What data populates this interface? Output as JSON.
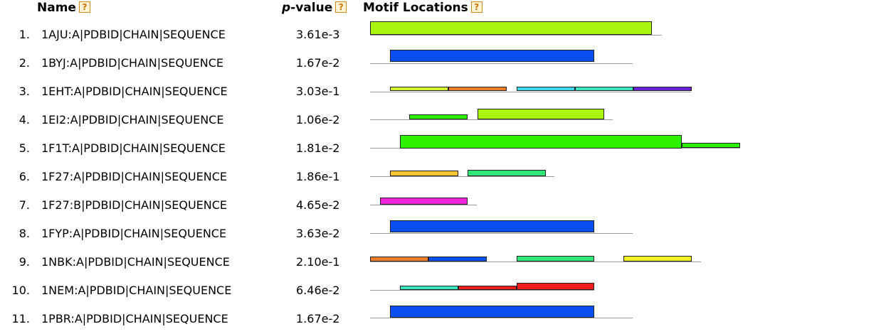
{
  "headers": {
    "name": "Name",
    "pvalue_prefix": "p",
    "pvalue_suffix": "-value",
    "motif_locations": "Motif Locations",
    "help_glyph": "?"
  },
  "colors": {
    "lime": "#aaf50f",
    "green": "#2df200",
    "blue": "#0a4ff0",
    "yellow_green": "#d6f032",
    "orange": "#f07d2a",
    "cyan": "#3ed8f0",
    "teal": "#38e8bc",
    "purple": "#6a22d8",
    "gold": "#f9c532",
    "spring": "#32e678",
    "magenta": "#f023dc",
    "bright_yellow": "#f2f22a",
    "red": "#f21d1d",
    "sequence_line": "#9a9a9a",
    "help_border": "#d98a1a"
  },
  "rows": [
    {
      "num": "1.",
      "name": "1AJU:A|PDBID|CHAIN|SEQUENCE",
      "pvalue": "3.61e-3"
    },
    {
      "num": "2.",
      "name": "1BYJ:A|PDBID|CHAIN|SEQUENCE",
      "pvalue": "1.67e-2"
    },
    {
      "num": "3.",
      "name": "1EHT:A|PDBID|CHAIN|SEQUENCE",
      "pvalue": "3.03e-1"
    },
    {
      "num": "4.",
      "name": "1EI2:A|PDBID|CHAIN|SEQUENCE",
      "pvalue": "1.06e-2"
    },
    {
      "num": "5.",
      "name": "1F1T:A|PDBID|CHAIN|SEQUENCE",
      "pvalue": "1.81e-2"
    },
    {
      "num": "6.",
      "name": "1F27:A|PDBID|CHAIN|SEQUENCE",
      "pvalue": "1.86e-1"
    },
    {
      "num": "7.",
      "name": "1F27:B|PDBID|CHAIN|SEQUENCE",
      "pvalue": "4.65e-2"
    },
    {
      "num": "8.",
      "name": "1FYP:A|PDBID|CHAIN|SEQUENCE",
      "pvalue": "3.63e-2"
    },
    {
      "num": "9.",
      "name": "1NBK:A|PDBID|CHAIN|SEQUENCE",
      "pvalue": "2.10e-1"
    },
    {
      "num": "10.",
      "name": "1NEM:A|PDBID|CHAIN|SEQUENCE",
      "pvalue": "6.46e-2"
    },
    {
      "num": "11.",
      "name": "1PBR:A|PDBID|CHAIN|SEQUENCE",
      "pvalue": "1.67e-2"
    }
  ]
}
